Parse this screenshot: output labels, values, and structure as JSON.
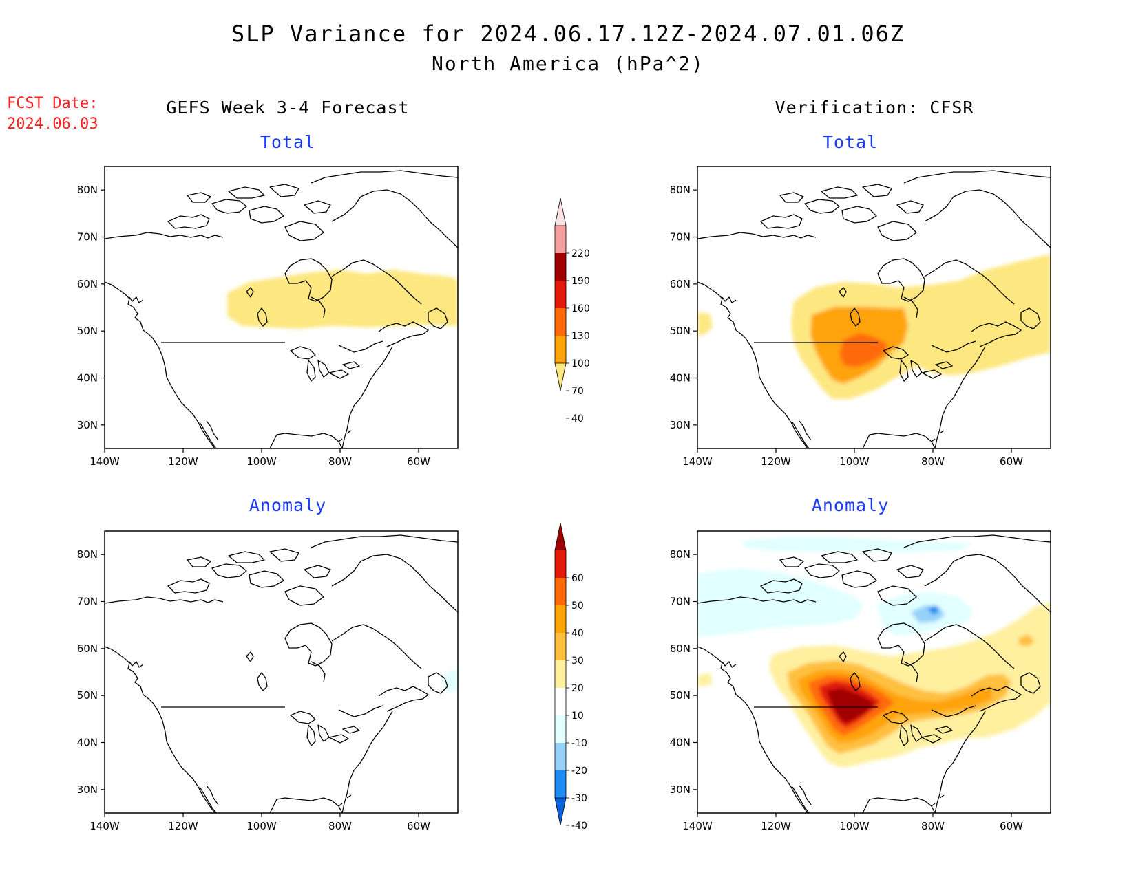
{
  "title": {
    "line1": "SLP Variance for 2024.06.17.12Z-2024.07.01.06Z",
    "line2": "North America (hPa^2)"
  },
  "forecast_date": {
    "label": "FCST Date:",
    "value": "2024.06.03"
  },
  "columns": {
    "left": "GEFS Week 3-4 Forecast",
    "right": "Verification: CFSR"
  },
  "panels": [
    {
      "id": "fcst-total",
      "title": "Total"
    },
    {
      "id": "verif-total",
      "title": "Total"
    },
    {
      "id": "fcst-anomaly",
      "title": "Anomaly"
    },
    {
      "id": "verif-anomaly",
      "title": "Anomaly"
    }
  ],
  "axes": {
    "lon_ticks": [
      "140W",
      "120W",
      "100W",
      "80W",
      "60W"
    ],
    "lat_ticks": [
      "80N",
      "70N",
      "60N",
      "50N",
      "40N",
      "30N"
    ],
    "lon_range": [
      -140,
      -50
    ],
    "lat_range": [
      25,
      85
    ]
  },
  "total_colorbar": {
    "levels": [
      "40",
      "70",
      "100",
      "130",
      "160",
      "190",
      "220"
    ],
    "colors": [
      "#fde780",
      "#ffa30a",
      "#ff6a0a",
      "#e21a0a",
      "#a00000",
      "#f5a0a0",
      "#fde3e3"
    ]
  },
  "anomaly_colorbar": {
    "levels": [
      "-40",
      "-30",
      "-20",
      "-10",
      "10",
      "20",
      "30",
      "40",
      "50",
      "60"
    ],
    "colors": [
      "#0a64e0",
      "#1e8cf0",
      "#96d2fa",
      "#e1ffff",
      "#ffffff",
      "#fff0a0",
      "#ffc040",
      "#ffa30a",
      "#ff6a0a",
      "#e21a0a",
      "#a00000"
    ]
  }
}
